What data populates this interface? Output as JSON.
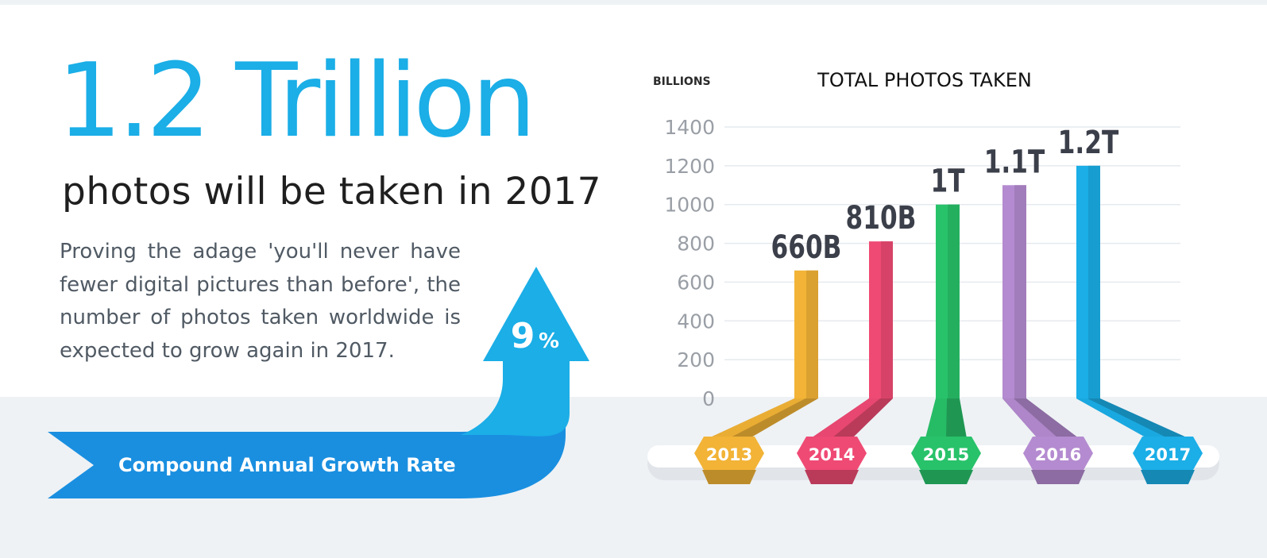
{
  "headline": "1.2 Trillion",
  "subhead": "photos will be taken in 2017",
  "body": "Proving the adage 'you'll never have fewer digital pictures than before', the number of photos taken worldwide is expected to grow again in 2017.",
  "growth": {
    "value": "9",
    "unit": "%",
    "label": "Compound Annual Growth Rate"
  },
  "colors": {
    "accent": "#1baee7",
    "growth_arrow": "#1a8fe0"
  },
  "chart_data": {
    "type": "bar",
    "title": "TOTAL PHOTOS TAKEN",
    "ylabel": "BILLIONS",
    "xlabel": "",
    "ylim": [
      0,
      1400
    ],
    "yticks": [
      0,
      200,
      400,
      600,
      800,
      1000,
      1200,
      1400
    ],
    "grid": true,
    "categories": [
      "2013",
      "2014",
      "2015",
      "2016",
      "2017"
    ],
    "values": [
      660,
      810,
      1000,
      1100,
      1200
    ],
    "data_labels": [
      "660B",
      "810B",
      "1T",
      "1.1T",
      "1.2T"
    ],
    "colors": [
      "#f2b336",
      "#ef4a74",
      "#28c26a",
      "#b48bd0",
      "#1baee7"
    ]
  }
}
